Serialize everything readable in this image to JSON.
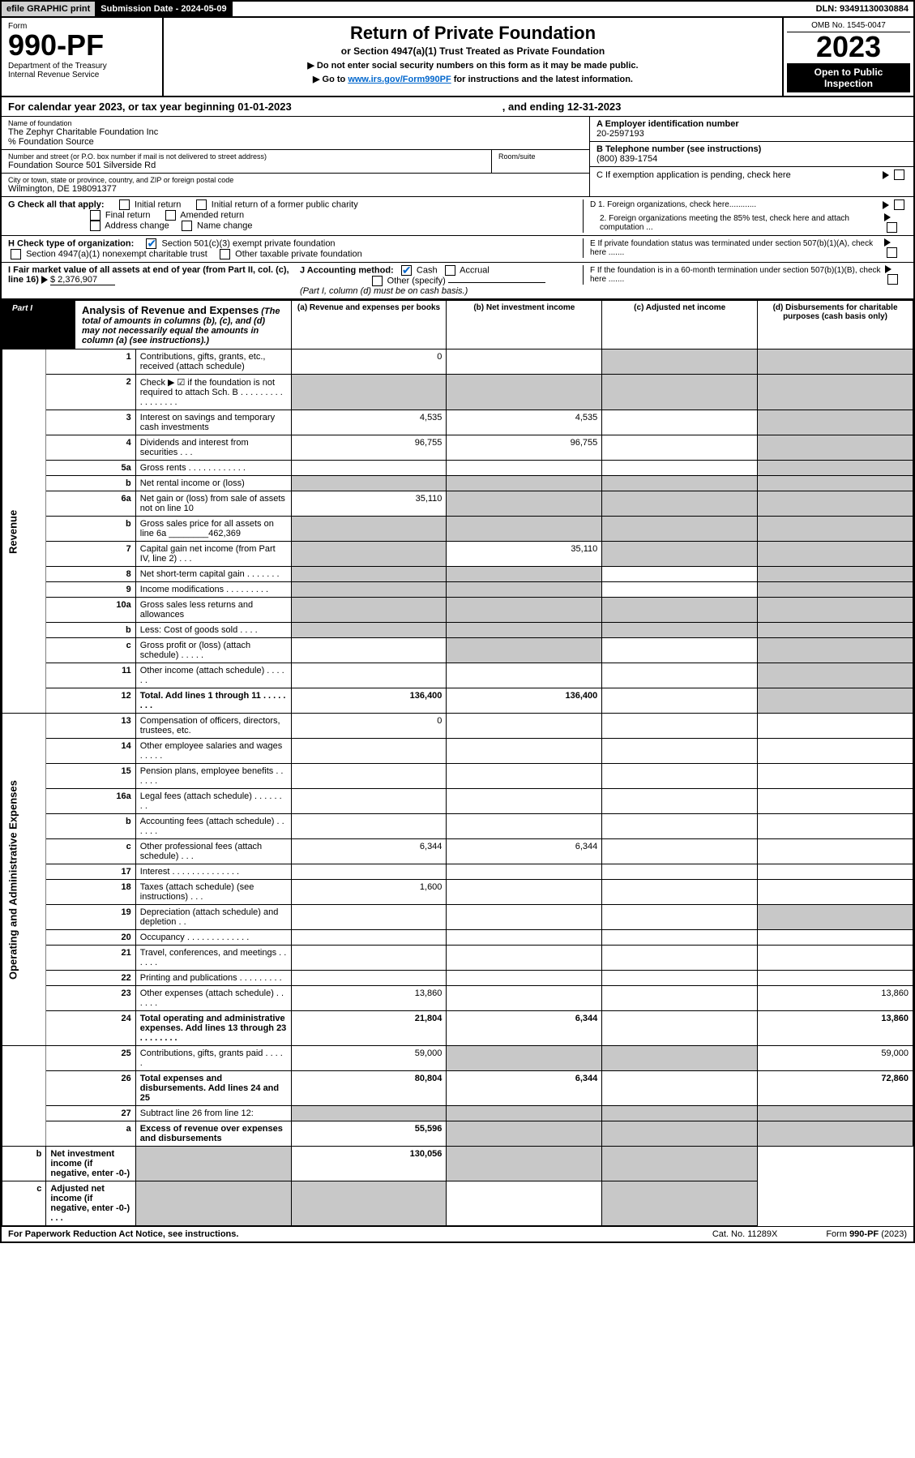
{
  "topbar": {
    "efile": "efile GRAPHIC print",
    "sub_date_lbl": "Submission Date - 2024-05-09",
    "dln": "DLN: 93491130030884"
  },
  "header": {
    "form_lbl": "Form",
    "form_num": "990-PF",
    "dept": "Department of the Treasury\nInternal Revenue Service",
    "title": "Return of Private Foundation",
    "subtitle": "or Section 4947(a)(1) Trust Treated as Private Foundation",
    "instr1": "▶ Do not enter social security numbers on this form as it may be made public.",
    "instr2_pre": "▶ Go to ",
    "instr2_link": "www.irs.gov/Form990PF",
    "instr2_post": " for instructions and the latest information.",
    "omb": "OMB No. 1545-0047",
    "year": "2023",
    "open_pub": "Open to Public Inspection"
  },
  "cal_year": {
    "text1": "For calendar year 2023, or tax year beginning 01-01-2023",
    "text2": ", and ending 12-31-2023"
  },
  "entity": {
    "name_lbl": "Name of foundation",
    "name": "The Zephyr Charitable Foundation Inc",
    "care_of": "% Foundation Source",
    "addr_lbl": "Number and street (or P.O. box number if mail is not delivered to street address)",
    "addr": "Foundation Source 501 Silverside Rd",
    "room_lbl": "Room/suite",
    "city_lbl": "City or town, state or province, country, and ZIP or foreign postal code",
    "city": "Wilmington, DE  198091377",
    "ein_lbl": "A Employer identification number",
    "ein": "20-2597193",
    "tel_lbl": "B Telephone number (see instructions)",
    "tel": "(800) 839-1754",
    "c_lbl": "C If exemption application is pending, check here",
    "d1_lbl": "D 1. Foreign organizations, check here............",
    "d2_lbl": "2. Foreign organizations meeting the 85% test, check here and attach computation ...",
    "e_lbl": "E  If private foundation status was terminated under section 507(b)(1)(A), check here .......",
    "f_lbl": "F  If the foundation is in a 60-month termination under section 507(b)(1)(B), check here .......",
    "g_lbl": "G Check all that apply:",
    "g_opts": [
      "Initial return",
      "Initial return of a former public charity",
      "Final return",
      "Amended return",
      "Address change",
      "Name change"
    ],
    "h_lbl": "H Check type of organization:",
    "h_opts": [
      "Section 501(c)(3) exempt private foundation",
      "Section 4947(a)(1) nonexempt charitable trust",
      "Other taxable private foundation"
    ],
    "i_lbl": "I Fair market value of all assets at end of year (from Part II, col. (c), line 16)",
    "i_val": "$  2,376,907",
    "j_lbl": "J Accounting method:",
    "j_opts": [
      "Cash",
      "Accrual",
      "Other (specify)"
    ],
    "j_note": "(Part I, column (d) must be on cash basis.)"
  },
  "part1": {
    "tab": "Part I",
    "title": "Analysis of Revenue and Expenses",
    "title_note": "(The total of amounts in columns (b), (c), and (d) may not necessarily equal the amounts in column (a) (see instructions).)",
    "col_a": "(a)  Revenue and expenses per books",
    "col_b": "(b)  Net investment income",
    "col_c": "(c)  Adjusted net income",
    "col_d": "(d)  Disbursements for charitable purposes (cash basis only)",
    "side_rev": "Revenue",
    "side_exp": "Operating and Administrative Expenses"
  },
  "rows": [
    {
      "n": "1",
      "d": "Contributions, gifts, grants, etc., received (attach schedule)",
      "a": "0",
      "b": "",
      "c": "g",
      "dd": "g"
    },
    {
      "n": "2",
      "d": "Check ▶ ☑ if the foundation is not required to attach Sch. B  .  .  .  .  .  .  .  .  .  .  .  .  .  .  .  .  .",
      "a": "g",
      "b": "g",
      "c": "g",
      "dd": "g"
    },
    {
      "n": "3",
      "d": "Interest on savings and temporary cash investments",
      "a": "4,535",
      "b": "4,535",
      "c": "",
      "dd": "g"
    },
    {
      "n": "4",
      "d": "Dividends and interest from securities  .  .  .",
      "a": "96,755",
      "b": "96,755",
      "c": "",
      "dd": "g"
    },
    {
      "n": "5a",
      "d": "Gross rents  .  .  .  .  .  .  .  .  .  .  .  .",
      "a": "",
      "b": "",
      "c": "",
      "dd": "g"
    },
    {
      "n": "b",
      "d": "Net rental income or (loss)  ",
      "a": "g",
      "b": "g",
      "c": "g",
      "dd": "g"
    },
    {
      "n": "6a",
      "d": "Net gain or (loss) from sale of assets not on line 10",
      "a": "35,110",
      "b": "g",
      "c": "g",
      "dd": "g"
    },
    {
      "n": "b",
      "d": "Gross sales price for all assets on line 6a ________462,369",
      "a": "g",
      "b": "g",
      "c": "g",
      "dd": "g"
    },
    {
      "n": "7",
      "d": "Capital gain net income (from Part IV, line 2)  .  .  .",
      "a": "g",
      "b": "35,110",
      "c": "g",
      "dd": "g"
    },
    {
      "n": "8",
      "d": "Net short-term capital gain  .  .  .  .  .  .  .",
      "a": "g",
      "b": "g",
      "c": "",
      "dd": "g"
    },
    {
      "n": "9",
      "d": "Income modifications  .  .  .  .  .  .  .  .  .",
      "a": "g",
      "b": "g",
      "c": "",
      "dd": "g"
    },
    {
      "n": "10a",
      "d": "Gross sales less returns and allowances",
      "a": "g",
      "b": "g",
      "c": "g",
      "dd": "g"
    },
    {
      "n": "b",
      "d": "Less: Cost of goods sold  .  .  .  .",
      "a": "g",
      "b": "g",
      "c": "g",
      "dd": "g"
    },
    {
      "n": "c",
      "d": "Gross profit or (loss) (attach schedule)  .  .  .  .  .",
      "a": "",
      "b": "g",
      "c": "",
      "dd": "g"
    },
    {
      "n": "11",
      "d": "Other income (attach schedule)  .  .  .  .  .  .",
      "a": "",
      "b": "",
      "c": "",
      "dd": "g"
    },
    {
      "n": "12",
      "d": "Total. Add lines 1 through 11  .  .  .  .  .  .  .  .",
      "a": "136,400",
      "b": "136,400",
      "c": "",
      "dd": "g",
      "bold": true
    },
    {
      "n": "13",
      "d": "Compensation of officers, directors, trustees, etc.",
      "a": "0",
      "b": "",
      "c": "",
      "dd": ""
    },
    {
      "n": "14",
      "d": "Other employee salaries and wages  .  .  .  .  .",
      "a": "",
      "b": "",
      "c": "",
      "dd": ""
    },
    {
      "n": "15",
      "d": "Pension plans, employee benefits  .  .  .  .  .  .",
      "a": "",
      "b": "",
      "c": "",
      "dd": ""
    },
    {
      "n": "16a",
      "d": "Legal fees (attach schedule)  .  .  .  .  .  .  .  .",
      "a": "",
      "b": "",
      "c": "",
      "dd": ""
    },
    {
      "n": "b",
      "d": "Accounting fees (attach schedule)  .  .  .  .  .  .",
      "a": "",
      "b": "",
      "c": "",
      "dd": ""
    },
    {
      "n": "c",
      "d": "Other professional fees (attach schedule)  .  .  .",
      "a": "6,344",
      "b": "6,344",
      "c": "",
      "dd": ""
    },
    {
      "n": "17",
      "d": "Interest  .  .  .  .  .  .  .  .  .  .  .  .  .  .",
      "a": "",
      "b": "",
      "c": "",
      "dd": ""
    },
    {
      "n": "18",
      "d": "Taxes (attach schedule) (see instructions)  .  .  .",
      "a": "1,600",
      "b": "",
      "c": "",
      "dd": ""
    },
    {
      "n": "19",
      "d": "Depreciation (attach schedule) and depletion  .  .",
      "a": "",
      "b": "",
      "c": "",
      "dd": "g"
    },
    {
      "n": "20",
      "d": "Occupancy  .  .  .  .  .  .  .  .  .  .  .  .  .",
      "a": "",
      "b": "",
      "c": "",
      "dd": ""
    },
    {
      "n": "21",
      "d": "Travel, conferences, and meetings  .  .  .  .  .  .",
      "a": "",
      "b": "",
      "c": "",
      "dd": ""
    },
    {
      "n": "22",
      "d": "Printing and publications  .  .  .  .  .  .  .  .  .",
      "a": "",
      "b": "",
      "c": "",
      "dd": ""
    },
    {
      "n": "23",
      "d": "Other expenses (attach schedule)  .  .  .  .  .  .",
      "a": "13,860",
      "b": "",
      "c": "",
      "dd": "13,860"
    },
    {
      "n": "24",
      "d": "Total operating and administrative expenses. Add lines 13 through 23  .  .  .  .  .  .  .  .",
      "a": "21,804",
      "b": "6,344",
      "c": "",
      "dd": "13,860",
      "bold": true
    },
    {
      "n": "25",
      "d": "Contributions, gifts, grants paid  .  .  .  .  .",
      "a": "59,000",
      "b": "g",
      "c": "g",
      "dd": "59,000"
    },
    {
      "n": "26",
      "d": "Total expenses and disbursements. Add lines 24 and 25",
      "a": "80,804",
      "b": "6,344",
      "c": "",
      "dd": "72,860",
      "bold": true
    },
    {
      "n": "27",
      "d": "Subtract line 26 from line 12:",
      "a": "g",
      "b": "g",
      "c": "g",
      "dd": "g"
    },
    {
      "n": "a",
      "d": "Excess of revenue over expenses and disbursements",
      "a": "55,596",
      "b": "g",
      "c": "g",
      "dd": "g",
      "bold": true
    },
    {
      "n": "b",
      "d": "Net investment income (if negative, enter -0-)",
      "a": "g",
      "b": "130,056",
      "c": "g",
      "dd": "g",
      "bold": true
    },
    {
      "n": "c",
      "d": "Adjusted net income (if negative, enter -0-)  .  .  .",
      "a": "g",
      "b": "g",
      "c": "",
      "dd": "g",
      "bold": true
    }
  ],
  "footer": {
    "pra": "For Paperwork Reduction Act Notice, see instructions.",
    "cat": "Cat. No. 11289X",
    "form": "Form 990-PF (2023)"
  }
}
